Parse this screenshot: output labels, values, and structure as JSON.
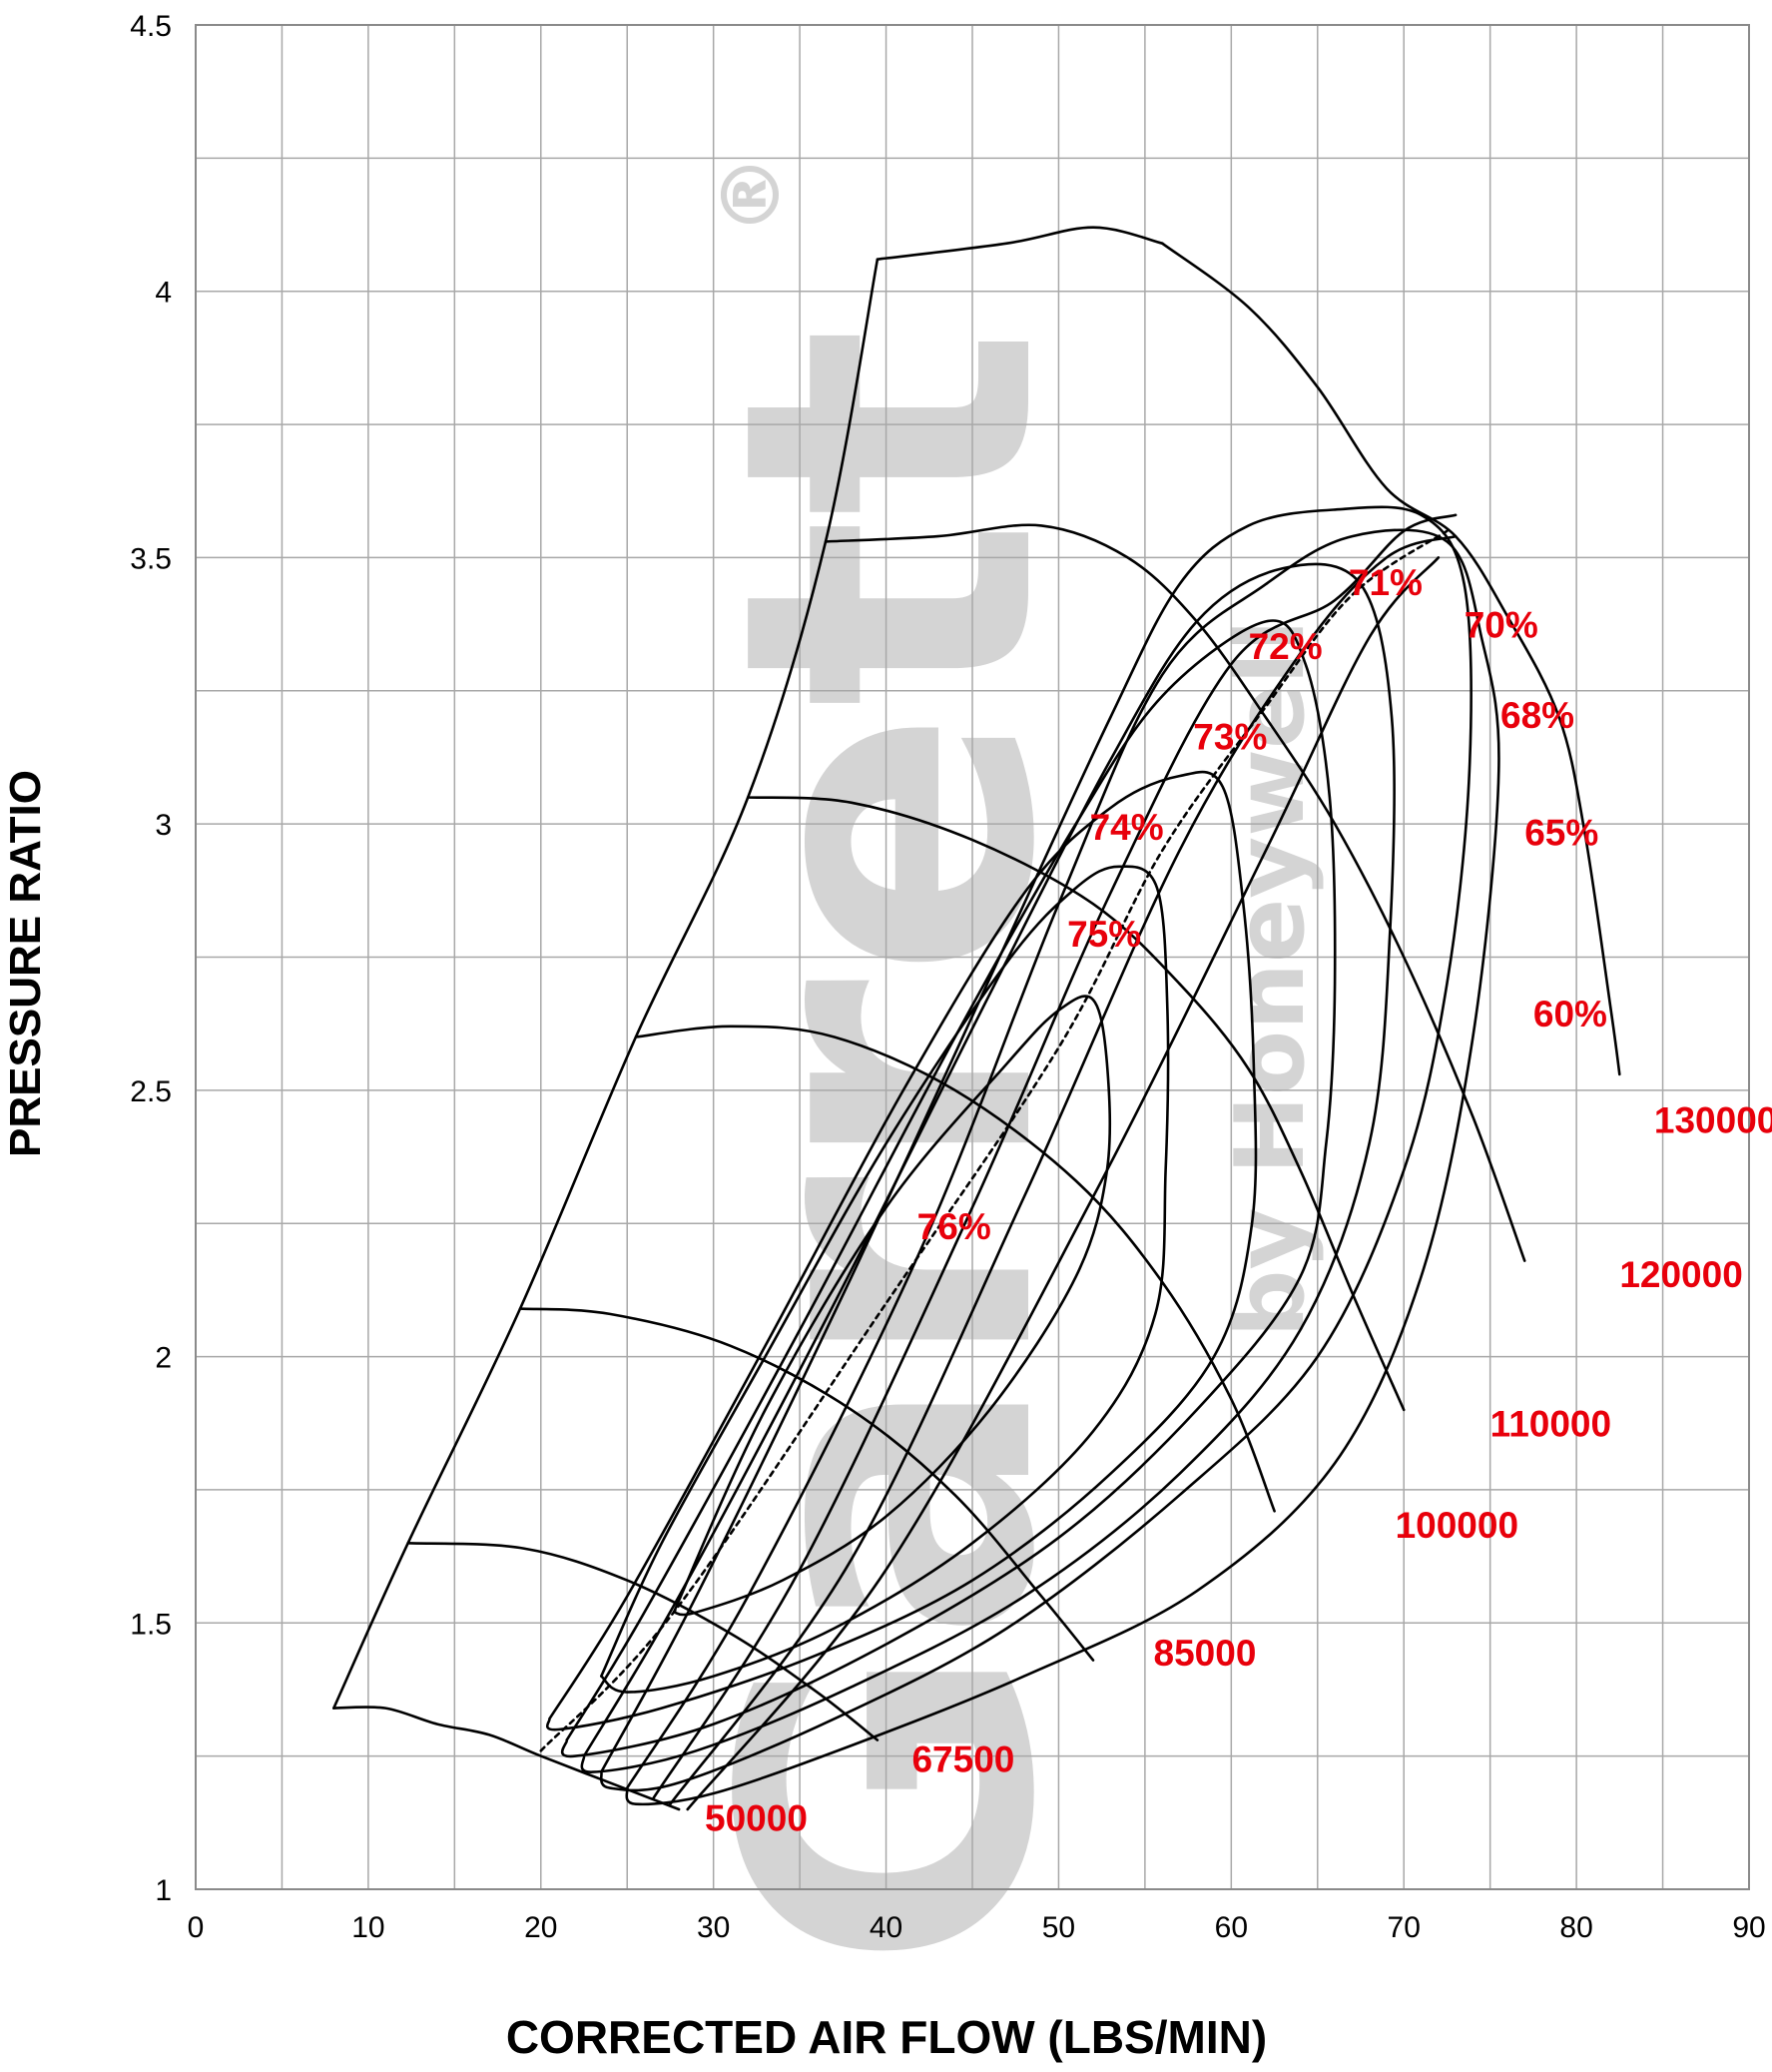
{
  "chart_data": {
    "type": "line",
    "title": "",
    "xlabel": "CORRECTED AIR FLOW (LBS/MIN)",
    "ylabel": "PRESSURE RATIO",
    "xlim": [
      0,
      90
    ],
    "ylim": [
      1,
      4.5
    ],
    "x_ticks": [
      "0",
      "10",
      "20",
      "30",
      "40",
      "50",
      "60",
      "70",
      "80",
      "90"
    ],
    "y_ticks": [
      "1",
      "1.5",
      "2",
      "2.5",
      "3",
      "3.5",
      "4",
      "4.5"
    ],
    "grid": true,
    "accent_color": "#e8000b",
    "watermark": {
      "brand": "Garrett",
      "sub": "by Honeywell",
      "mark": "®"
    },
    "surge_line": [
      [
        8,
        1.34
      ],
      [
        12.3,
        1.65
      ],
      [
        18.8,
        2.09
      ],
      [
        25.5,
        2.6
      ],
      [
        32,
        3.05
      ],
      [
        36.5,
        3.53
      ],
      [
        39.5,
        4.06
      ]
    ],
    "top_boundary": [
      [
        39.5,
        4.06
      ],
      [
        47,
        4.09
      ],
      [
        52,
        4.12
      ],
      [
        56,
        4.09
      ]
    ],
    "speed_lines": [
      {
        "label": "50000",
        "points": [
          [
            8,
            1.34
          ],
          [
            11,
            1.34
          ],
          [
            14,
            1.31
          ],
          [
            17,
            1.29
          ],
          [
            20,
            1.25
          ],
          [
            24,
            1.2
          ],
          [
            28,
            1.15
          ]
        ]
      },
      {
        "label": "67500",
        "points": [
          [
            12.3,
            1.65
          ],
          [
            19,
            1.64
          ],
          [
            25,
            1.58
          ],
          [
            31,
            1.48
          ],
          [
            36,
            1.37
          ],
          [
            39.5,
            1.28
          ]
        ]
      },
      {
        "label": "85000",
        "points": [
          [
            18.8,
            2.09
          ],
          [
            24,
            2.08
          ],
          [
            31,
            2.02
          ],
          [
            38,
            1.9
          ],
          [
            44,
            1.74
          ],
          [
            49,
            1.55
          ],
          [
            52,
            1.43
          ]
        ]
      },
      {
        "label": "100000",
        "points": [
          [
            25.5,
            2.6
          ],
          [
            31,
            2.62
          ],
          [
            37,
            2.6
          ],
          [
            44,
            2.5
          ],
          [
            51,
            2.33
          ],
          [
            56,
            2.14
          ],
          [
            60,
            1.92
          ],
          [
            62.5,
            1.71
          ]
        ]
      },
      {
        "label": "110000",
        "points": [
          [
            32,
            3.05
          ],
          [
            38,
            3.04
          ],
          [
            45,
            2.97
          ],
          [
            52,
            2.85
          ],
          [
            57,
            2.7
          ],
          [
            61,
            2.54
          ],
          [
            64,
            2.35
          ],
          [
            67,
            2.12
          ],
          [
            70,
            1.9
          ]
        ]
      },
      {
        "label": "120000",
        "points": [
          [
            36.5,
            3.53
          ],
          [
            43,
            3.54
          ],
          [
            49,
            3.56
          ],
          [
            54,
            3.5
          ],
          [
            58,
            3.38
          ],
          [
            62,
            3.2
          ],
          [
            66,
            3
          ],
          [
            70,
            2.75
          ],
          [
            74,
            2.45
          ],
          [
            77,
            2.18
          ]
        ]
      },
      {
        "label": "130000",
        "points": [
          [
            56,
            4.09
          ],
          [
            61,
            3.97
          ],
          [
            65,
            3.82
          ],
          [
            69,
            3.63
          ],
          [
            73,
            3.54
          ],
          [
            76,
            3.39
          ],
          [
            79,
            3.2
          ],
          [
            80.5,
            2.98
          ],
          [
            82,
            2.65
          ],
          [
            82.5,
            2.53
          ]
        ]
      }
    ],
    "efficiency_islands": [
      {
        "label": "76%",
        "points": [
          [
            27.7,
            1.52
          ],
          [
            33,
            1.9
          ],
          [
            40,
            2.28
          ],
          [
            47,
            2.55
          ],
          [
            50,
            2.65
          ],
          [
            52,
            2.67
          ],
          [
            52.8,
            2.55
          ],
          [
            52.8,
            2.35
          ],
          [
            51,
            2.15
          ],
          [
            46,
            1.9
          ],
          [
            40,
            1.7
          ],
          [
            34,
            1.58
          ],
          [
            29,
            1.52
          ],
          [
            27.7,
            1.52
          ]
        ]
      },
      {
        "label": "75%",
        "points": [
          [
            23.5,
            1.4
          ],
          [
            27,
            1.65
          ],
          [
            33,
            2
          ],
          [
            40,
            2.4
          ],
          [
            47,
            2.74
          ],
          [
            51,
            2.88
          ],
          [
            53.5,
            2.92
          ],
          [
            55.7,
            2.88
          ],
          [
            56.3,
            2.65
          ],
          [
            56.2,
            2.35
          ],
          [
            55.6,
            2.08
          ],
          [
            52,
            1.86
          ],
          [
            45,
            1.65
          ],
          [
            37,
            1.49
          ],
          [
            30,
            1.4
          ],
          [
            25,
            1.37
          ],
          [
            23.5,
            1.4
          ]
        ]
      },
      {
        "label": "74%",
        "points": [
          [
            20.5,
            1.32
          ],
          [
            25,
            1.55
          ],
          [
            33,
            2.02
          ],
          [
            41,
            2.5
          ],
          [
            48,
            2.87
          ],
          [
            53,
            3.03
          ],
          [
            57,
            3.09
          ],
          [
            59.5,
            3.07
          ],
          [
            60.7,
            2.85
          ],
          [
            61.3,
            2.55
          ],
          [
            61.2,
            2.25
          ],
          [
            59,
            2
          ],
          [
            53,
            1.78
          ],
          [
            45,
            1.58
          ],
          [
            36,
            1.44
          ],
          [
            27,
            1.34
          ],
          [
            21,
            1.3
          ],
          [
            20.5,
            1.32
          ]
        ]
      },
      {
        "label": "73%",
        "points": [
          [
            21.5,
            1.28
          ],
          [
            26,
            1.52
          ],
          [
            35,
            2.05
          ],
          [
            44,
            2.6
          ],
          [
            51,
            3
          ],
          [
            56,
            3.24
          ],
          [
            62,
            3.38
          ],
          [
            64.3,
            3.3
          ],
          [
            65.7,
            3.05
          ],
          [
            66,
            2.7
          ],
          [
            65.5,
            2.4
          ],
          [
            64,
            2.15
          ],
          [
            58,
            1.9
          ],
          [
            50,
            1.66
          ],
          [
            40,
            1.46
          ],
          [
            30,
            1.31
          ],
          [
            22,
            1.25
          ],
          [
            21.5,
            1.28
          ]
        ]
      },
      {
        "label": "72%",
        "points": [
          [
            22.5,
            1.25
          ],
          [
            28,
            1.55
          ],
          [
            37,
            2.1
          ],
          [
            46,
            2.68
          ],
          [
            53,
            3.12
          ],
          [
            58,
            3.38
          ],
          [
            63,
            3.48
          ],
          [
            67.5,
            3.45
          ],
          [
            69.3,
            3.2
          ],
          [
            69.2,
            2.8
          ],
          [
            68,
            2.4
          ],
          [
            64,
            2.05
          ],
          [
            57,
            1.78
          ],
          [
            48,
            1.55
          ],
          [
            38,
            1.38
          ],
          [
            29,
            1.26
          ],
          [
            23,
            1.22
          ],
          [
            22.5,
            1.25
          ]
        ]
      },
      {
        "label": "71%",
        "points": [
          [
            23.5,
            1.22
          ],
          [
            29,
            1.55
          ],
          [
            38,
            2.15
          ],
          [
            47,
            2.78
          ],
          [
            53,
            3.2
          ],
          [
            57,
            3.45
          ],
          [
            61,
            3.56
          ],
          [
            66,
            3.59
          ],
          [
            71,
            3.58
          ],
          [
            73.5,
            3.45
          ],
          [
            73.8,
            3.1
          ],
          [
            72.5,
            2.7
          ],
          [
            70,
            2.35
          ],
          [
            65,
            2
          ],
          [
            57,
            1.74
          ],
          [
            47,
            1.49
          ],
          [
            37,
            1.32
          ],
          [
            28,
            1.2
          ],
          [
            24,
            1.19
          ],
          [
            23.5,
            1.22
          ]
        ]
      },
      {
        "label": "70%",
        "points": [
          [
            25,
            1.19
          ],
          [
            32,
            1.55
          ],
          [
            42,
            2.2
          ],
          [
            50,
            2.85
          ],
          [
            56,
            3.28
          ],
          [
            62,
            3.45
          ],
          [
            67,
            3.54
          ],
          [
            72.5,
            3.53
          ],
          [
            74.5,
            3.35
          ],
          [
            75.5,
            3.1
          ],
          [
            74,
            2.6
          ],
          [
            71,
            2.15
          ],
          [
            66,
            1.8
          ],
          [
            58,
            1.56
          ],
          [
            48,
            1.4
          ],
          [
            38,
            1.27
          ],
          [
            30,
            1.18
          ],
          [
            25.5,
            1.16
          ],
          [
            25,
            1.19
          ]
        ]
      },
      {
        "label": "68%",
        "points": [
          [
            26.5,
            1.17
          ],
          [
            35,
            1.6
          ],
          [
            45,
            2.28
          ],
          [
            53,
            2.87
          ],
          [
            60,
            3.3
          ],
          [
            66,
            3.42
          ],
          [
            70,
            3.55
          ],
          [
            73,
            3.58
          ]
        ]
      },
      {
        "label": "65%",
        "points": [
          [
            27.5,
            1.16
          ],
          [
            38,
            1.62
          ],
          [
            48,
            2.3
          ],
          [
            57,
            2.95
          ],
          [
            64,
            3.32
          ],
          [
            69,
            3.5
          ],
          [
            73,
            3.54
          ]
        ]
      },
      {
        "label": "60%",
        "points": [
          [
            28.5,
            1.15
          ],
          [
            40,
            1.6
          ],
          [
            52,
            2.3
          ],
          [
            62,
            2.95
          ],
          [
            68,
            3.35
          ],
          [
            72,
            3.5
          ]
        ]
      }
    ],
    "choke_markers": [
      {
        "label": "70%",
        "points": [
          [
            73,
            3.54
          ],
          [
            74.5,
            3.48
          ]
        ]
      }
    ],
    "peak_efficiency_line": [
      [
        20,
        1.26
      ],
      [
        27.7,
        1.52
      ],
      [
        40,
        2.1
      ],
      [
        50,
        2.58
      ],
      [
        56,
        2.95
      ],
      [
        62,
        3.22
      ],
      [
        67,
        3.43
      ],
      [
        72.5,
        3.55
      ]
    ],
    "labels": [
      "50000",
      "67500",
      "85000",
      "100000",
      "110000",
      "120000",
      "130000",
      "76%",
      "75%",
      "74%",
      "73%",
      "72%",
      "71%",
      "70%",
      "68%",
      "65%",
      "60%"
    ]
  }
}
